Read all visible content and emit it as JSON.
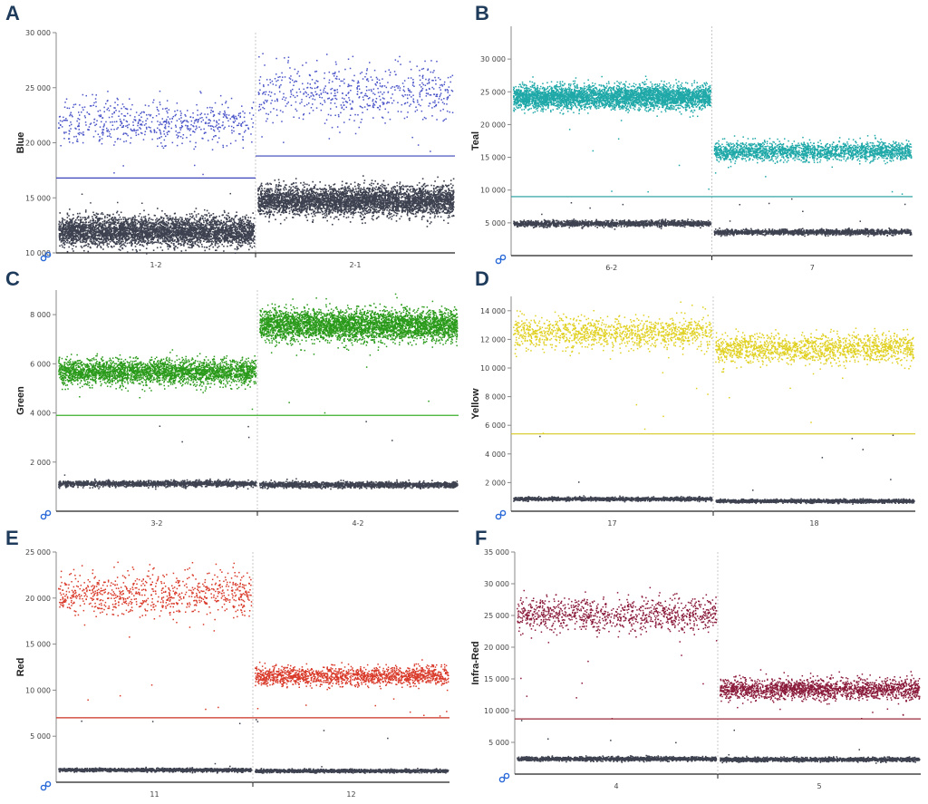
{
  "chart_data": [
    {
      "panel": "A",
      "type": "scatter",
      "ylabel": "Blue",
      "color": "#4a54c8",
      "threshold_color": "#3a44b8",
      "ylim": [
        10000,
        30000
      ],
      "yticks": [
        10000,
        15000,
        20000,
        25000,
        30000
      ],
      "ytick_labels": [
        "10 000",
        "15 000",
        "20 000",
        "25 000",
        "30 000"
      ],
      "categories": [
        "1-2",
        "2-1"
      ],
      "wells": [
        {
          "name": "1-2",
          "positive_mean": 21800,
          "positive_spread": 1000,
          "positive_count": 600,
          "negative_mean": 12000,
          "negative_spread": 650,
          "negative_count": 4000,
          "threshold": 16800
        },
        {
          "name": "2-1",
          "positive_mean": 24500,
          "positive_spread": 1300,
          "positive_count": 600,
          "negative_mean": 14800,
          "negative_spread": 650,
          "negative_count": 4000,
          "threshold": 18800
        }
      ]
    },
    {
      "panel": "B",
      "type": "scatter",
      "ylabel": "Teal",
      "color": "#1fa8a8",
      "threshold_color": "#1a9a9a",
      "ylim": [
        0,
        35000
      ],
      "yticks": [
        5000,
        10000,
        15000,
        20000,
        25000,
        30000
      ],
      "ytick_labels": [
        "5 000",
        "10 000",
        "15 000",
        "20 000",
        "25 000",
        "30 000"
      ],
      "categories": [
        "6-2",
        "7"
      ],
      "wells": [
        {
          "name": "6-2",
          "positive_mean": 24300,
          "positive_spread": 900,
          "positive_count": 4000,
          "negative_mean": 5000,
          "negative_spread": 220,
          "negative_count": 1500,
          "threshold": 9000
        },
        {
          "name": "7",
          "positive_mean": 16000,
          "positive_spread": 700,
          "positive_count": 2000,
          "negative_mean": 3700,
          "negative_spread": 200,
          "negative_count": 1500,
          "threshold": 9000
        }
      ]
    },
    {
      "panel": "C",
      "type": "scatter",
      "ylabel": "Green",
      "color": "#2a9a1a",
      "threshold_color": "#3ab02a",
      "ylim": [
        0,
        9000
      ],
      "yticks": [
        2000,
        4000,
        6000,
        8000
      ],
      "ytick_labels": [
        "2 000",
        "4 000",
        "6 000",
        "8 000"
      ],
      "categories": [
        "3-2",
        "4-2"
      ],
      "wells": [
        {
          "name": "3-2",
          "positive_mean": 5700,
          "positive_spread": 250,
          "positive_count": 3000,
          "negative_mean": 1150,
          "negative_spread": 60,
          "negative_count": 1500,
          "threshold": 3900
        },
        {
          "name": "4-2",
          "positive_mean": 7600,
          "positive_spread": 320,
          "positive_count": 4000,
          "negative_mean": 1100,
          "negative_spread": 60,
          "negative_count": 1500,
          "threshold": 3900
        }
      ]
    },
    {
      "panel": "D",
      "type": "scatter",
      "ylabel": "Yellow",
      "color": "#e0d020",
      "threshold_color": "#d8c820",
      "ylim": [
        0,
        15000
      ],
      "yticks": [
        2000,
        4000,
        6000,
        8000,
        10000,
        12000,
        14000
      ],
      "ytick_labels": [
        "2 000",
        "4 000",
        "6 000",
        "8 000",
        "10 000",
        "12 000",
        "14 000"
      ],
      "categories": [
        "17",
        "18"
      ],
      "wells": [
        {
          "name": "17",
          "positive_mean": 12500,
          "positive_spread": 550,
          "positive_count": 1200,
          "negative_mean": 900,
          "negative_spread": 60,
          "negative_count": 1500,
          "threshold": 5400
        },
        {
          "name": "18",
          "positive_mean": 11400,
          "positive_spread": 500,
          "positive_count": 1500,
          "negative_mean": 750,
          "negative_spread": 60,
          "negative_count": 1500,
          "threshold": 5400
        }
      ]
    },
    {
      "panel": "E",
      "type": "scatter",
      "ylabel": "Red",
      "color": "#d93a2a",
      "threshold_color": "#c83020",
      "ylim": [
        0,
        25000
      ],
      "yticks": [
        5000,
        10000,
        15000,
        20000,
        25000
      ],
      "ytick_labels": [
        "5 000",
        "10 000",
        "15 000",
        "20 000",
        "25 000"
      ],
      "categories": [
        "11",
        "12"
      ],
      "wells": [
        {
          "name": "11",
          "positive_mean": 20500,
          "positive_spread": 1100,
          "positive_count": 800,
          "negative_mean": 1400,
          "negative_spread": 90,
          "negative_count": 1500,
          "threshold": 7000
        },
        {
          "name": "12",
          "positive_mean": 11600,
          "positive_spread": 500,
          "positive_count": 1500,
          "negative_mean": 1300,
          "negative_spread": 90,
          "negative_count": 1500,
          "threshold": 7000
        }
      ]
    },
    {
      "panel": "F",
      "type": "scatter",
      "ylabel": "Infra-Red",
      "color": "#8a1a3a",
      "threshold_color": "#9a2a3a",
      "ylim": [
        0,
        35000
      ],
      "yticks": [
        5000,
        10000,
        15000,
        20000,
        25000,
        30000,
        35000
      ],
      "ytick_labels": [
        "5 000",
        "10 000",
        "15 000",
        "20 000",
        "25 000",
        "30 000",
        "35 000"
      ],
      "categories": [
        "4",
        "5"
      ],
      "wells": [
        {
          "name": "4",
          "positive_mean": 25300,
          "positive_spread": 1300,
          "positive_count": 1000,
          "negative_mean": 2500,
          "negative_spread": 160,
          "negative_count": 1500,
          "threshold": 8700
        },
        {
          "name": "5",
          "positive_mean": 13500,
          "positive_spread": 800,
          "positive_count": 1800,
          "negative_mean": 2400,
          "negative_spread": 160,
          "negative_count": 1500,
          "threshold": 8700
        }
      ]
    }
  ],
  "negative_color": "#3e4250",
  "panels": {
    "A": {
      "letter": "A"
    },
    "B": {
      "letter": "B"
    },
    "C": {
      "letter": "C"
    },
    "D": {
      "letter": "D"
    },
    "E": {
      "letter": "E"
    },
    "F": {
      "letter": "F"
    }
  }
}
